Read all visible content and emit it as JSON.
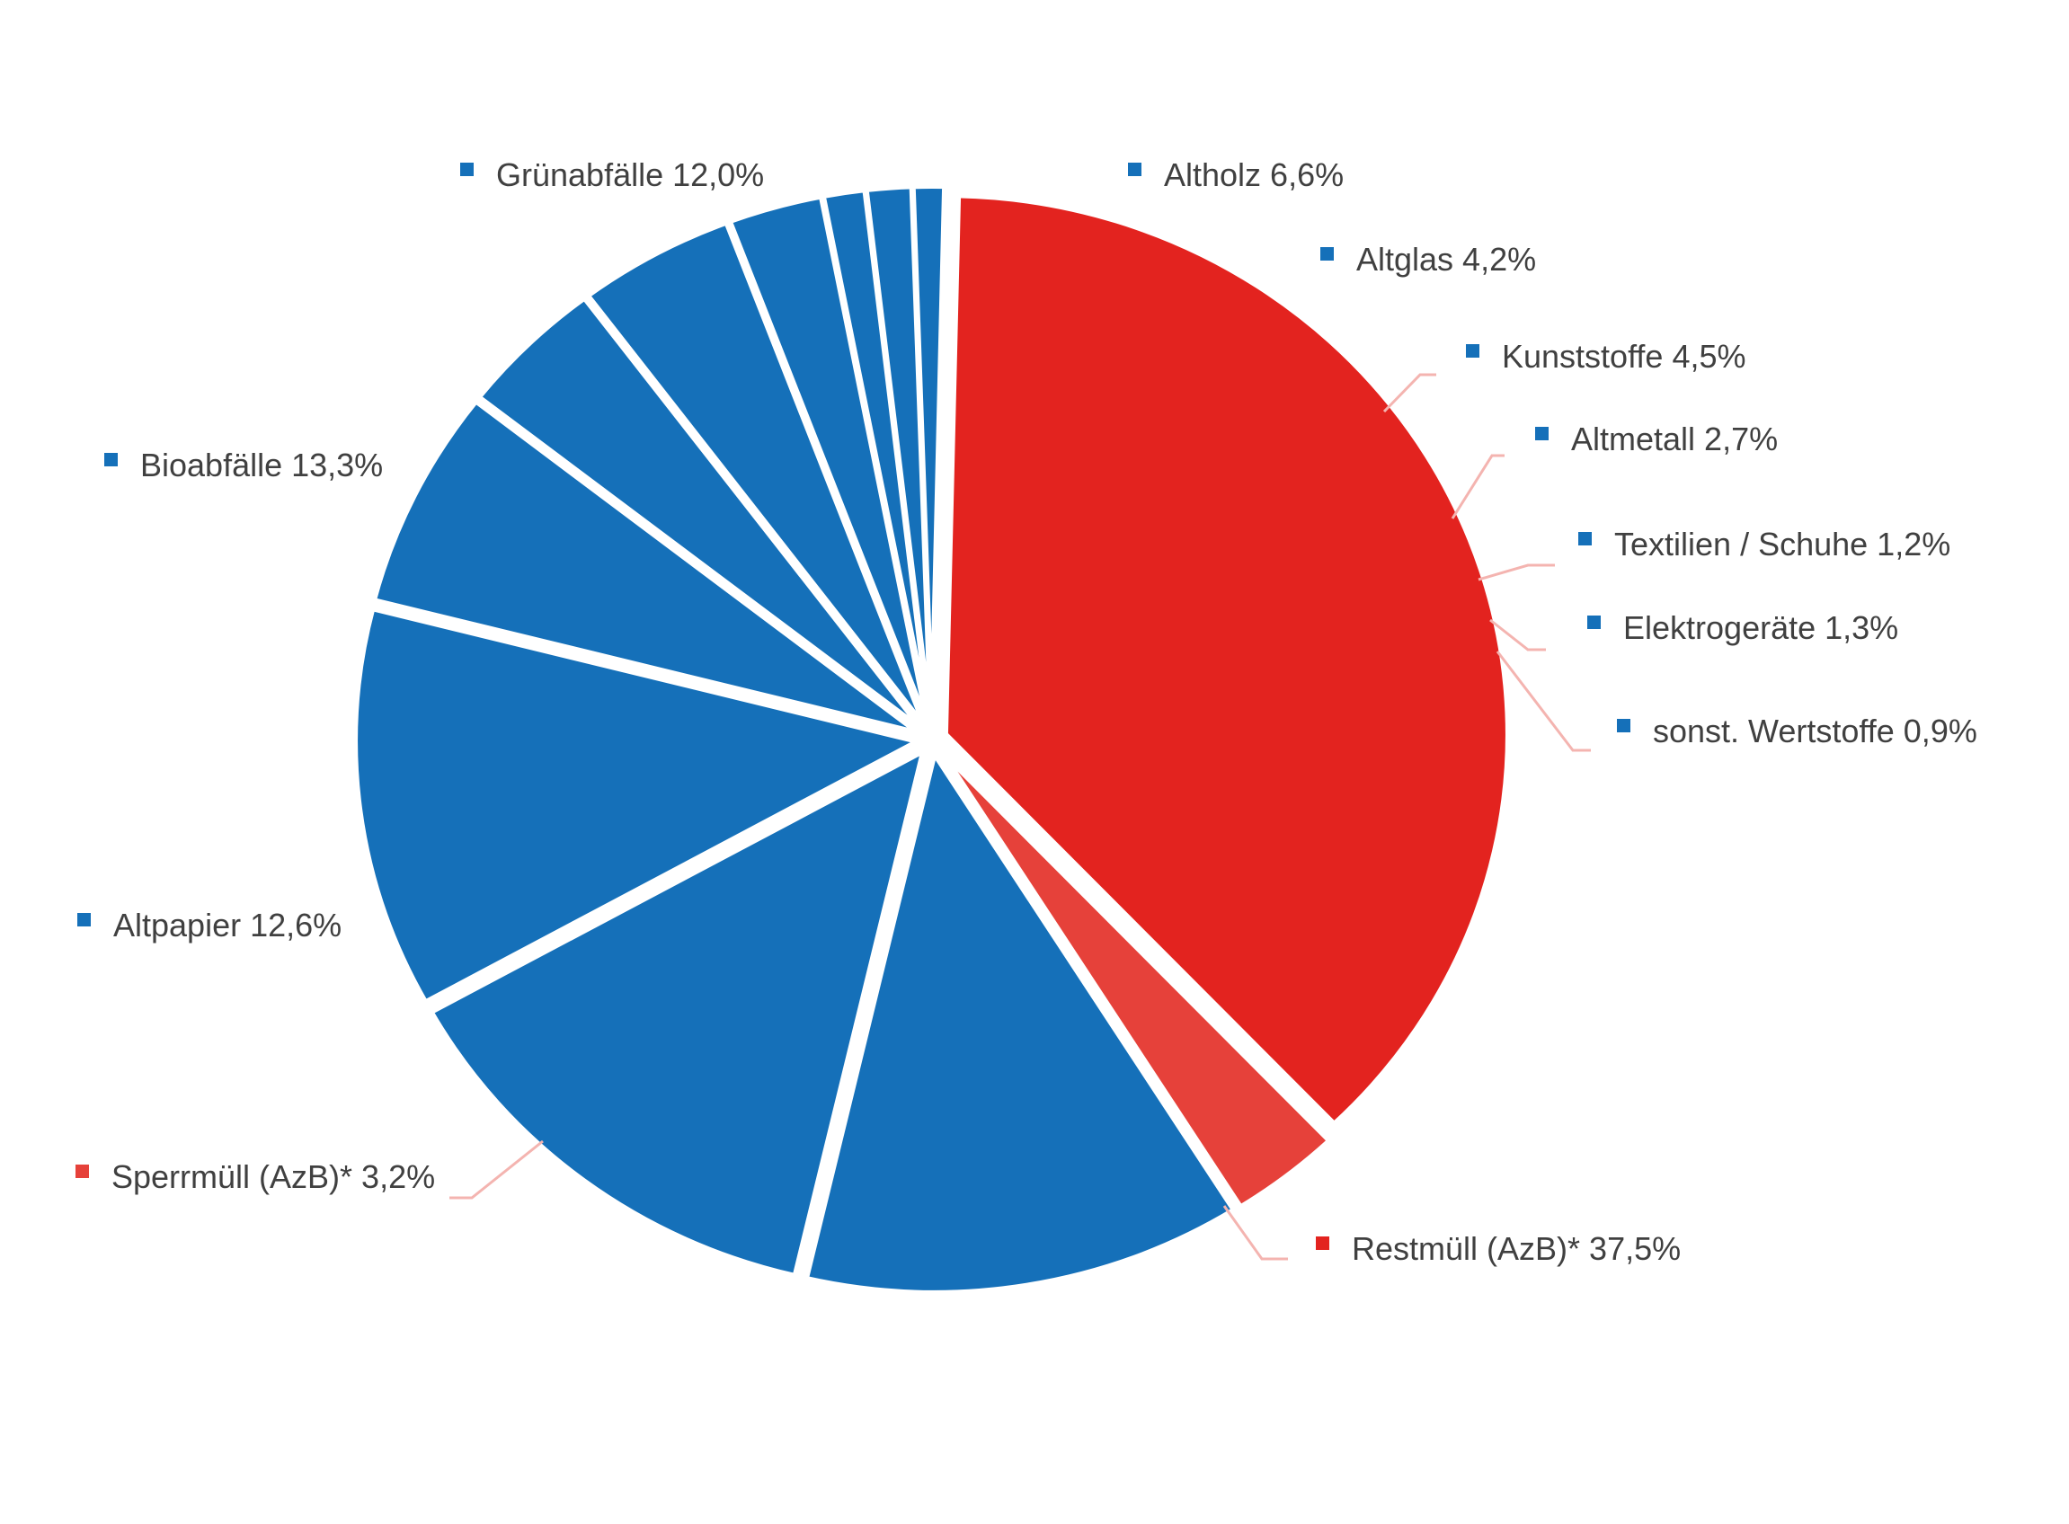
{
  "chart_data": {
    "type": "pie",
    "title": "",
    "legend": "inline-labels",
    "start_angle_deg": -88.7,
    "colors": {
      "blue": "#1570b9",
      "red": "#e3231f",
      "light_red": "#e6413a",
      "leader": "#f4b4b0"
    },
    "slices": [
      {
        "name": "Restmüll (AzB)*",
        "value": 37.5,
        "label": "Restmüll (AzB)* 37,5%",
        "color": "#e3231f"
      },
      {
        "name": "Sperrmüll (AzB)*",
        "value": 3.2,
        "label": "Sperrmüll (AzB)* 3,2%",
        "color": "#e6413a"
      },
      {
        "name": "Altpapier",
        "value": 12.6,
        "label": "Altpapier 12,6%",
        "color": "#1570b9"
      },
      {
        "name": "Bioabfälle",
        "value": 13.3,
        "label": "Bioabfälle 13,3%",
        "color": "#1570b9"
      },
      {
        "name": "Grünabfälle",
        "value": 12.0,
        "label": "Grünabfälle 12,0%",
        "color": "#1570b9"
      },
      {
        "name": "Altholz",
        "value": 6.6,
        "label": "Altholz 6,6%",
        "color": "#1570b9"
      },
      {
        "name": "Altglas",
        "value": 4.2,
        "label": "Altglas 4,2%",
        "color": "#1570b9"
      },
      {
        "name": "Kunststoffe",
        "value": 4.5,
        "label": "Kunststoffe 4,5%",
        "color": "#1570b9"
      },
      {
        "name": "Altmetall",
        "value": 2.7,
        "label": "Altmetall 2,7%",
        "color": "#1570b9"
      },
      {
        "name": "Textilien / Schuhe",
        "value": 1.2,
        "label": "Textilien / Schuhe 1,2%",
        "color": "#1570b9"
      },
      {
        "name": "Elektrogeräte",
        "value": 1.3,
        "label": "Elektrogeräte 1,3%",
        "color": "#1570b9"
      },
      {
        "name": "sonst. Wertstoffe",
        "value": 0.9,
        "label": "sonst. Wertstoffe 0,9%",
        "color": "#1570b9"
      }
    ]
  }
}
